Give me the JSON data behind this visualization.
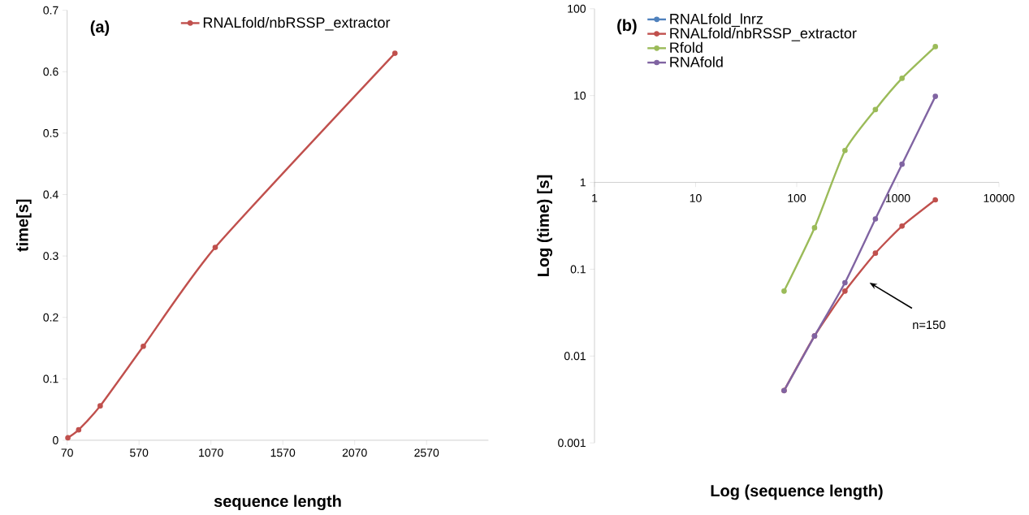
{
  "chart_data": [
    {
      "type": "line",
      "title": "(a)",
      "xlabel": "sequence length",
      "ylabel": "time[s]",
      "x": [
        75,
        150,
        300,
        600,
        1100,
        2350
      ],
      "series": [
        {
          "name": "RNALfold/nbRSSP_extractor",
          "color": "#c0504d",
          "values": [
            0.004,
            0.017,
            0.056,
            0.153,
            0.314,
            0.63
          ]
        }
      ],
      "xlim": [
        70,
        3000
      ],
      "xticks": [
        70,
        570,
        1070,
        1570,
        2070,
        2570
      ],
      "ylim": [
        0,
        0.7
      ],
      "yticks": [
        0,
        0.1,
        0.2,
        0.3,
        0.4,
        0.5,
        0.6,
        0.7
      ],
      "grid": false,
      "legend": "top",
      "marker": "circle",
      "line_style": "solid"
    },
    {
      "type": "line",
      "title": "(b)",
      "xlabel": "Log (sequence length)",
      "ylabel": "Log (time) [s]",
      "x": [
        75,
        150,
        300,
        600,
        1100,
        2350
      ],
      "series": [
        {
          "name": "RNALfold_lnrz",
          "color": "#4f81bd",
          "values": [
            null,
            null,
            null,
            null,
            null,
            null
          ]
        },
        {
          "name": "RNALfold/nbRSSP_extractor",
          "color": "#c0504d",
          "values": [
            0.004,
            0.017,
            0.056,
            0.153,
            0.314,
            0.63
          ]
        },
        {
          "name": "Rfold",
          "color": "#9bbb59",
          "values": [
            0.056,
            0.3,
            2.33,
            6.9,
            15.8,
            36.6
          ]
        },
        {
          "name": "RNAfold",
          "color": "#8064a2",
          "values": [
            0.004,
            0.017,
            0.07,
            0.38,
            1.62,
            9.8
          ]
        }
      ],
      "xlim": [
        1,
        10000
      ],
      "xticks": [
        1,
        10,
        100,
        1000,
        10000
      ],
      "ylim": [
        0.001,
        100
      ],
      "yticks": [
        0.001,
        0.01,
        0.1,
        1,
        10,
        100
      ],
      "log": "xy",
      "grid": false,
      "legend": "top left",
      "marker": "circle",
      "line_style": "solid",
      "annotations": [
        "n=150"
      ]
    }
  ]
}
